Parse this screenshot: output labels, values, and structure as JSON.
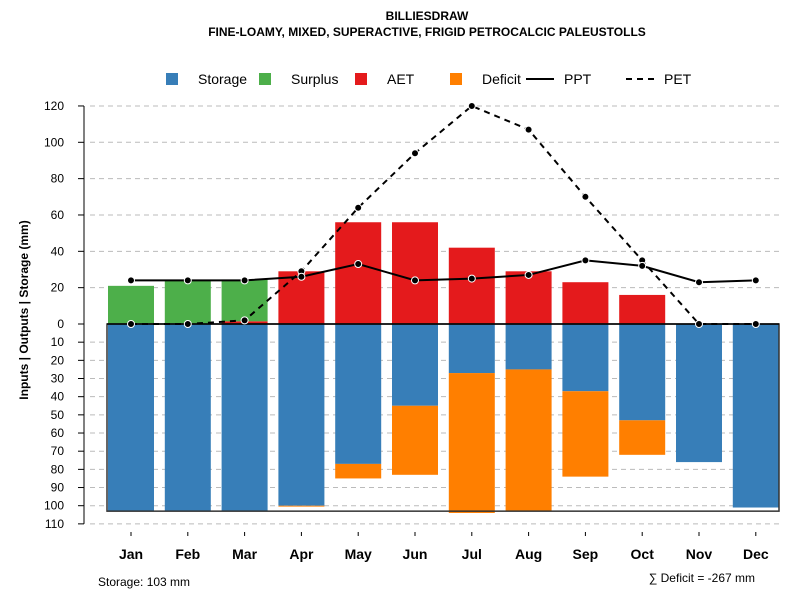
{
  "chart_data": {
    "type": "bar",
    "title": "BILLIESDRAW",
    "subtitle": "FINE-LOAMY, MIXED, SUPERACTIVE, FRIGID PETROCALCIC PALEUSTOLLS",
    "ylabel": "Inputs | Outputs | Storage    (mm)",
    "ylim": [
      -110,
      120
    ],
    "yticks_up": [
      "0",
      "20",
      "40",
      "60",
      "80",
      "100",
      "120"
    ],
    "yticks_down": [
      "10",
      "20",
      "30",
      "40",
      "50",
      "60",
      "70",
      "80",
      "90",
      "100",
      "110"
    ],
    "categories": [
      "Jan",
      "Feb",
      "Mar",
      "Apr",
      "May",
      "Jun",
      "Jul",
      "Aug",
      "Sep",
      "Oct",
      "Nov",
      "Dec"
    ],
    "legend": [
      "Storage",
      "Surplus",
      "AET",
      "Deficit",
      "PPT",
      "PET"
    ],
    "colors": {
      "Storage": "#377EB8",
      "Surplus": "#4DAF4A",
      "AET": "#E41A1C",
      "Deficit": "#FF7F00"
    },
    "series": [
      {
        "name": "Surplus",
        "values": [
          21,
          24,
          23,
          0,
          0,
          0,
          0,
          0,
          0,
          0,
          0,
          0
        ]
      },
      {
        "name": "AET",
        "values": [
          0,
          0,
          1.5,
          29,
          56,
          56,
          42,
          29,
          23,
          16,
          0,
          0
        ]
      },
      {
        "name": "Storage",
        "values": [
          103,
          103,
          103,
          100,
          77,
          45,
          27,
          25,
          37,
          53,
          76,
          101
        ]
      },
      {
        "name": "Deficit",
        "values": [
          0,
          0,
          0,
          0.5,
          8,
          38,
          77,
          78,
          47,
          19,
          0,
          0
        ]
      },
      {
        "name": "PPT",
        "values": [
          24,
          24,
          24,
          26,
          33,
          24,
          25,
          27,
          35,
          32,
          23,
          24
        ]
      },
      {
        "name": "PET",
        "values": [
          0,
          0,
          2,
          29,
          64,
          94,
          120,
          107,
          70,
          35,
          0,
          0
        ]
      }
    ],
    "storage_capacity": 103,
    "storage_note": "Storage: 103 mm",
    "deficit_note": "∑ Deficit = -267 mm"
  }
}
